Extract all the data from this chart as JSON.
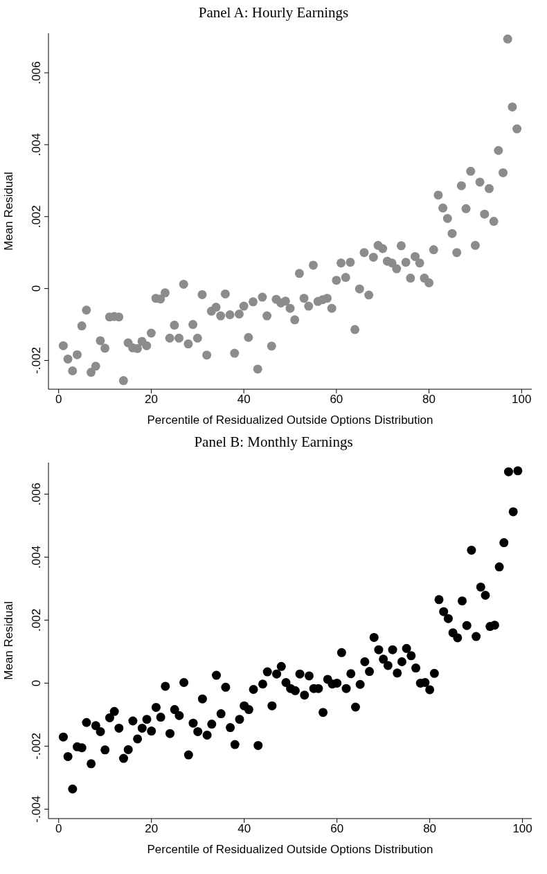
{
  "chart_data": [
    {
      "type": "scatter",
      "title": "Panel A: Hourly Earnings",
      "xlabel": "Percentile of Residualized Outside Options Distribution",
      "ylabel": "Mean Residual",
      "marker": "circle",
      "xlim": [
        -2.2,
        102.2
      ],
      "xticks": [
        0,
        20,
        40,
        60,
        80,
        100
      ],
      "ylim": [
        -0.0028,
        0.0071
      ],
      "yticks": [
        {
          "value": -0.002,
          "label": "-.002"
        },
        0,
        {
          "value": 0.002,
          "label": ".002"
        },
        {
          "value": 0.004,
          "label": ".004"
        },
        {
          "value": 0.006,
          "label": ".006"
        }
      ],
      "x": [
        1,
        2,
        3,
        4,
        5,
        6,
        7,
        8,
        9,
        10,
        11,
        12,
        13,
        14,
        15,
        16,
        17,
        18,
        19,
        20,
        21,
        22,
        23,
        24,
        25,
        26,
        27,
        28,
        29,
        30,
        31,
        32,
        33,
        34,
        35,
        36,
        37,
        38,
        39,
        40,
        41,
        42,
        43,
        44,
        45,
        46,
        47,
        48,
        49,
        50,
        51,
        52,
        53,
        54,
        55,
        56,
        57,
        58,
        59,
        60,
        61,
        62,
        63,
        64,
        65,
        66,
        67,
        68,
        69,
        70,
        71,
        72,
        73,
        74,
        75,
        76,
        77,
        78,
        79,
        80,
        81,
        82,
        83,
        84,
        85,
        86,
        87,
        88,
        89,
        90,
        91,
        92,
        93,
        94,
        95,
        96,
        97,
        98,
        99
      ],
      "series": [
        {
          "color": "#8c8c8c",
          "values": [
            -0.00159,
            -0.00196,
            -0.00229,
            -0.00184,
            -0.00104,
            -0.0006,
            -0.00233,
            -0.00216,
            -0.00145,
            -0.00166,
            -0.00079,
            -0.00078,
            -0.00079,
            -0.00256,
            -0.00151,
            -0.00165,
            -0.00167,
            -0.00147,
            -0.00159,
            -0.00124,
            -0.00027,
            -0.00029,
            -0.00012,
            -0.00138,
            -0.00102,
            -0.00138,
            0.00012,
            -0.00154,
            -0.001,
            -0.00138,
            -0.00017,
            -0.00185,
            -0.00063,
            -0.00052,
            -0.00076,
            -0.00015,
            -0.00073,
            -0.0018,
            -0.00071,
            -0.00049,
            -0.00136,
            -0.00037,
            -0.00224,
            -0.00024,
            -0.00076,
            -0.0016,
            -0.0003,
            -0.0004,
            -0.00035,
            -0.00055,
            -0.00087,
            0.00042,
            -0.00027,
            -0.00049,
            0.00065,
            -0.00036,
            -0.00031,
            -0.00027,
            -0.00055,
            0.00023,
            0.00071,
            0.00031,
            0.00073,
            -0.00114,
            -1e-05,
            0.001,
            -0.00018,
            0.00087,
            0.0012,
            0.00111,
            0.00076,
            0.00071,
            0.00055,
            0.00119,
            0.00073,
            0.00029,
            0.00089,
            0.00071,
            0.00029,
            0.00016,
            0.00108,
            0.0026,
            0.00224,
            0.00195,
            0.00153,
            0.001,
            0.00286,
            0.00222,
            0.00326,
            0.0012,
            0.00296,
            0.00207,
            0.00278,
            0.00187,
            0.00384,
            0.00322,
            0.00694,
            0.00505,
            0.00444
          ]
        }
      ]
    },
    {
      "type": "scatter",
      "title": "Panel B: Monthly Earnings",
      "xlabel": "Percentile of Residualized Outside Options Distribution",
      "ylabel": "Mean Residual",
      "marker": "circle",
      "xlim": [
        -2.2,
        102
      ],
      "xticks": [
        0,
        20,
        40,
        60,
        80,
        100
      ],
      "ylim": [
        -0.0043,
        0.007
      ],
      "yticks": [
        {
          "value": -0.004,
          "label": "-.004"
        },
        {
          "value": -0.002,
          "label": "-.002"
        },
        0,
        {
          "value": 0.002,
          "label": ".002"
        },
        {
          "value": 0.004,
          "label": ".004"
        },
        {
          "value": 0.006,
          "label": ".006"
        }
      ],
      "x": [
        1,
        2,
        3,
        4,
        5,
        6,
        7,
        8,
        9,
        10,
        11,
        12,
        13,
        14,
        15,
        16,
        17,
        18,
        19,
        20,
        21,
        22,
        23,
        24,
        25,
        26,
        27,
        28,
        29,
        30,
        31,
        32,
        33,
        34,
        35,
        36,
        37,
        38,
        39,
        40,
        41,
        42,
        43,
        44,
        45,
        46,
        47,
        48,
        49,
        50,
        51,
        52,
        53,
        54,
        55,
        56,
        57,
        58,
        59,
        60,
        61,
        62,
        63,
        64,
        65,
        66,
        67,
        68,
        69,
        70,
        71,
        72,
        73,
        74,
        75,
        76,
        77,
        78,
        79,
        80,
        81,
        82,
        83,
        84,
        85,
        86,
        87,
        88,
        89,
        90,
        91,
        92,
        93,
        94,
        95,
        96,
        97,
        98,
        99
      ],
      "series": [
        {
          "color": "#000000",
          "values": [
            -0.00171,
            -0.00233,
            -0.00336,
            -0.00202,
            -0.00205,
            -0.00125,
            -0.00256,
            -0.00135,
            -0.00154,
            -0.00212,
            -0.0011,
            -0.0009,
            -0.00143,
            -0.00239,
            -0.00211,
            -0.0012,
            -0.00177,
            -0.00143,
            -0.00115,
            -0.00152,
            -0.00077,
            -0.00108,
            -0.0001,
            -0.0016,
            -0.00084,
            -0.00103,
            2e-05,
            -0.00228,
            -0.00127,
            -0.00154,
            -0.0005,
            -0.00165,
            -0.0013,
            0.00025,
            -0.00097,
            -0.00013,
            -0.00141,
            -0.00195,
            -0.00115,
            -0.00072,
            -0.00084,
            -0.0002,
            -0.00198,
            -3e-05,
            0.00036,
            -0.00072,
            0.00029,
            0.00053,
            2e-05,
            -0.00017,
            -0.00024,
            0.00029,
            -0.00038,
            0.00023,
            -0.00017,
            -0.00017,
            -0.00093,
            0.00012,
            -3e-05,
            0,
            0.00097,
            -0.00017,
            0.0003,
            -0.00076,
            -4e-05,
            0.00068,
            0.00037,
            0.00145,
            0.00106,
            0.00076,
            0.00056,
            0.00106,
            0.00032,
            0.00068,
            0.0011,
            0.00087,
            0.00048,
            0,
            2e-05,
            -0.00021,
            0.00031,
            0.00265,
            0.00227,
            0.00205,
            0.0016,
            0.00144,
            0.00261,
            0.00183,
            0.00422,
            0.00148,
            0.00305,
            0.00279,
            0.0018,
            0.00184,
            0.00369,
            0.00446,
            0.00671,
            0.00544,
            0.00674
          ]
        }
      ]
    }
  ]
}
